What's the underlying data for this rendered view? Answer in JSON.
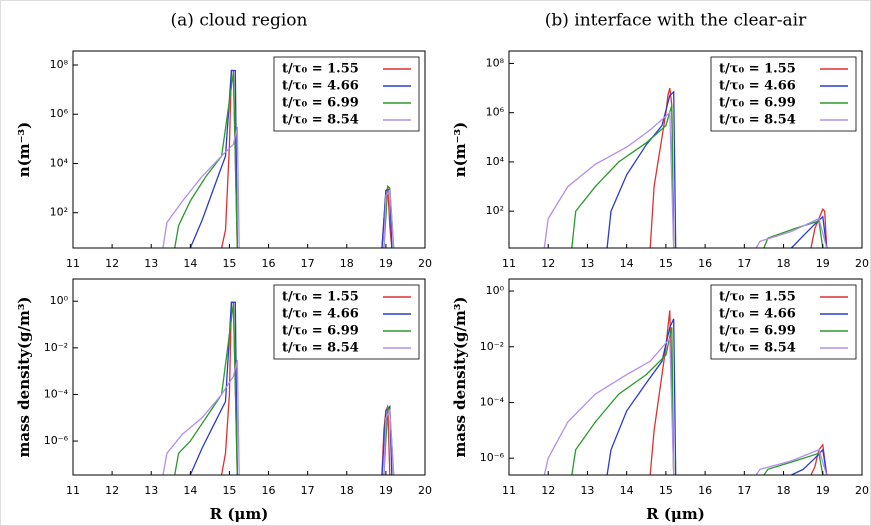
{
  "chart_data": [
    {
      "type": "line",
      "title": "(a) cloud region",
      "ylabel": "n(m⁻³)",
      "log_y": true,
      "legend": "upper right",
      "xlim": [
        11,
        20
      ],
      "xticks": [
        11,
        12,
        13,
        14,
        15,
        16,
        17,
        18,
        19,
        20
      ],
      "ylim": [
        3.7,
        370000000
      ],
      "yticks": [
        {
          "value": 100,
          "label": "10²"
        },
        {
          "value": 10000,
          "label": "10⁴"
        },
        {
          "value": 1000000,
          "label": "10⁶"
        },
        {
          "value": 100000000,
          "label": "10⁸"
        }
      ],
      "series": [
        {
          "name": "t/τ₀ = 1.55",
          "color": "#e03030",
          "x": [
            14.8,
            14.9,
            15.0,
            15.05,
            15.1,
            15.2,
            15.3,
            18.9,
            18.95,
            19.0,
            19.05,
            19.1,
            19.15
          ],
          "values": [
            3.7,
            20,
            50000,
            60000000,
            60000000,
            3.7,
            null,
            3.7,
            50,
            800,
            1000,
            30,
            3.7
          ]
        },
        {
          "name": "t/τ₀ = 4.66",
          "color": "#2a3bd0",
          "x": [
            14.0,
            14.3,
            14.6,
            14.9,
            15.05,
            15.15,
            15.2,
            15.3,
            18.9,
            19.0,
            19.1,
            19.15
          ],
          "values": [
            3.7,
            50,
            1000,
            20000,
            60000000,
            60000000,
            3.7,
            null,
            3.7,
            800,
            900,
            3.7
          ]
        },
        {
          "name": "t/τ₀ = 6.99",
          "color": "#2a9a2a",
          "x": [
            13.6,
            13.7,
            14.0,
            14.4,
            14.8,
            15.1,
            15.2,
            15.3,
            18.95,
            19.05,
            19.1,
            19.2
          ],
          "values": [
            3.7,
            30,
            300,
            3000,
            20000,
            50000000,
            3.7,
            null,
            3.7,
            1200,
            1000,
            3.7
          ]
        },
        {
          "name": "t/τ₀ = 8.54",
          "color": "#b28ef0",
          "x": [
            13.3,
            13.4,
            13.8,
            14.3,
            14.8,
            15.1,
            15.2,
            15.25,
            15.3,
            18.95,
            19.0,
            19.1,
            19.2
          ],
          "values": [
            3.7,
            40,
            300,
            3000,
            20000,
            60000,
            300000,
            3.7,
            null,
            3.7,
            500,
            800,
            3.7
          ]
        }
      ]
    },
    {
      "type": "line",
      "ylabel": "mass density(g/m³)",
      "xlabel": "R (μm)",
      "log_y": true,
      "legend": "upper right",
      "xlim": [
        11,
        20
      ],
      "xticks": [
        11,
        12,
        13,
        14,
        15,
        16,
        17,
        18,
        19,
        20
      ],
      "ylim": [
        3.5e-08,
        9
      ],
      "yticks": [
        {
          "value": 1e-06,
          "label": "10⁻⁶"
        },
        {
          "value": 0.0001,
          "label": "10⁻⁴"
        },
        {
          "value": 0.01,
          "label": "10⁻²"
        },
        {
          "value": 1,
          "label": "10⁰"
        }
      ],
      "series": [
        {
          "name": "t/τ₀ = 1.55",
          "color": "#e03030",
          "x": [
            14.8,
            14.9,
            15.0,
            15.05,
            15.1,
            15.2,
            15.3,
            18.9,
            18.95,
            19.0,
            19.05,
            19.1
          ],
          "values": [
            3.5e-08,
            3e-07,
            0.0001,
            0.9,
            0.9,
            3.5e-08,
            null,
            3.5e-08,
            3e-06,
            2e-05,
            3e-05,
            3.5e-08
          ]
        },
        {
          "name": "t/τ₀ = 4.66",
          "color": "#2a3bd0",
          "x": [
            14.0,
            14.3,
            14.6,
            14.9,
            15.05,
            15.15,
            15.2,
            15.3,
            18.9,
            19.0,
            19.1,
            19.15
          ],
          "values": [
            3.5e-08,
            5e-07,
            5e-06,
            5e-05,
            0.9,
            0.9,
            3.5e-08,
            null,
            3.5e-08,
            2e-05,
            3e-05,
            3.5e-08
          ]
        },
        {
          "name": "t/τ₀ = 6.99",
          "color": "#2a9a2a",
          "x": [
            13.6,
            13.7,
            14.0,
            14.4,
            14.8,
            15.1,
            15.2,
            15.3,
            18.95,
            19.05,
            19.1,
            19.2
          ],
          "values": [
            3.5e-08,
            3e-07,
            1e-06,
            1e-05,
            0.0001,
            0.8,
            3.5e-08,
            null,
            3.5e-08,
            3e-05,
            2e-05,
            3.5e-08
          ]
        },
        {
          "name": "t/τ₀ = 8.54",
          "color": "#b28ef0",
          "x": [
            13.3,
            13.4,
            13.8,
            14.3,
            14.8,
            15.1,
            15.2,
            15.25,
            15.3,
            18.95,
            19.0,
            19.1,
            19.2
          ],
          "values": [
            3.5e-08,
            3e-07,
            2e-06,
            1e-05,
            0.0001,
            0.0006,
            0.003,
            3.5e-08,
            null,
            3.5e-08,
            1e-05,
            2e-05,
            3.5e-08
          ]
        }
      ]
    },
    {
      "type": "line",
      "title": "(b) interface with the clear-air",
      "ylabel": "n(m⁻³)",
      "log_y": true,
      "legend": "upper right",
      "xlim": [
        11,
        20
      ],
      "xticks": [
        11,
        12,
        13,
        14,
        15,
        16,
        17,
        18,
        19,
        20
      ],
      "ylim": [
        3.2,
        320000000
      ],
      "yticks": [
        {
          "value": 100,
          "label": "10²"
        },
        {
          "value": 10000,
          "label": "10⁴"
        },
        {
          "value": 1000000,
          "label": "10⁶"
        },
        {
          "value": 100000000,
          "label": "10⁸"
        }
      ],
      "series": [
        {
          "name": "t/τ₀ = 1.55",
          "color": "#e03030",
          "x": [
            14.6,
            14.7,
            14.8,
            14.9,
            15.0,
            15.05,
            15.1,
            15.15,
            15.2,
            15.3,
            18.7,
            18.8,
            18.9,
            19.0,
            19.05,
            19.1
          ],
          "values": [
            3.2,
            1000,
            10000,
            100000,
            1000000,
            5000000,
            10000000,
            2000000,
            3.2,
            null,
            3.2,
            20,
            50,
            120,
            100,
            3.2
          ]
        },
        {
          "name": "t/τ₀ = 4.66",
          "color": "#2a3bd0",
          "x": [
            13.5,
            13.6,
            14.0,
            14.5,
            14.9,
            15.1,
            15.2,
            15.25,
            15.3,
            18.2,
            18.5,
            18.8,
            19.0,
            19.1
          ],
          "values": [
            3.2,
            100,
            3000,
            50000,
            300000,
            5000000,
            7000000,
            3.2,
            null,
            3.2,
            10,
            30,
            60,
            3.2
          ]
        },
        {
          "name": "t/τ₀ = 6.99",
          "color": "#2a9a2a",
          "x": [
            12.6,
            12.7,
            13.2,
            13.8,
            14.5,
            15.0,
            15.15,
            15.2,
            15.3,
            17.5,
            17.6,
            18.3,
            18.9,
            19.0
          ],
          "values": [
            3.2,
            100,
            1000,
            10000,
            60000,
            300000,
            2000000,
            3.2,
            null,
            3.2,
            8,
            20,
            40,
            3.2
          ]
        },
        {
          "name": "t/τ₀ = 8.54",
          "color": "#b28ef0",
          "x": [
            11.9,
            12.0,
            12.5,
            13.2,
            14.0,
            14.6,
            15.1,
            15.2,
            15.3,
            17.3,
            17.4,
            18.2,
            18.9,
            19.1
          ],
          "values": [
            3.2,
            50,
            1000,
            8000,
            40000,
            200000,
            1000000,
            3.2,
            null,
            3.2,
            6,
            15,
            50,
            3.2
          ]
        }
      ]
    },
    {
      "type": "line",
      "ylabel": "mass density(g/m³)",
      "xlabel": "R (μm)",
      "log_y": true,
      "legend": "upper right",
      "xlim": [
        11,
        20
      ],
      "xticks": [
        11,
        12,
        13,
        14,
        15,
        16,
        17,
        18,
        19,
        20
      ],
      "ylim": [
        2.5e-07,
        2.7
      ],
      "yticks": [
        {
          "value": 1e-06,
          "label": "10⁻⁶"
        },
        {
          "value": 0.0001,
          "label": "10⁻⁴"
        },
        {
          "value": 0.01,
          "label": "10⁻²"
        },
        {
          "value": 1,
          "label": "10⁰"
        }
      ],
      "series": [
        {
          "name": "t/τ₀ = 1.55",
          "color": "#e03030",
          "x": [
            14.6,
            14.7,
            14.9,
            15.0,
            15.05,
            15.1,
            15.2,
            15.3,
            18.7,
            18.8,
            18.9,
            19.0,
            19.1
          ],
          "values": [
            2.5e-07,
            1e-05,
            0.001,
            0.01,
            0.05,
            0.2,
            2.5e-07,
            null,
            2.5e-07,
            5e-07,
            2e-06,
            3e-06,
            2.5e-07
          ]
        },
        {
          "name": "t/τ₀ = 4.66",
          "color": "#2a3bd0",
          "x": [
            13.5,
            13.6,
            14.0,
            14.5,
            14.9,
            15.1,
            15.2,
            15.25,
            15.3,
            18.2,
            18.5,
            18.8,
            19.0,
            19.1
          ],
          "values": [
            2.5e-07,
            2e-06,
            5e-05,
            0.0005,
            0.003,
            0.05,
            0.1,
            2.5e-07,
            null,
            2.5e-07,
            4e-07,
            1e-06,
            2e-06,
            2.5e-07
          ]
        },
        {
          "name": "t/τ₀ = 6.99",
          "color": "#2a9a2a",
          "x": [
            12.6,
            12.7,
            13.2,
            13.8,
            14.5,
            15.0,
            15.15,
            15.2,
            15.3,
            17.5,
            17.6,
            18.3,
            18.9,
            19.0
          ],
          "values": [
            2.5e-07,
            2e-06,
            2e-05,
            0.0002,
            0.001,
            0.005,
            0.05,
            2.5e-07,
            null,
            2.5e-07,
            4e-07,
            8e-07,
            1.5e-06,
            2.5e-07
          ]
        },
        {
          "name": "t/τ₀ = 8.54",
          "color": "#b28ef0",
          "x": [
            11.9,
            12.0,
            12.5,
            13.2,
            14.0,
            14.6,
            15.1,
            15.2,
            15.3,
            17.3,
            17.4,
            18.2,
            18.9,
            19.1
          ],
          "values": [
            2.5e-07,
            1e-06,
            2e-05,
            0.0002,
            0.001,
            0.003,
            0.02,
            2.5e-07,
            null,
            2.5e-07,
            4e-07,
            8e-07,
            2e-06,
            2.5e-07
          ]
        }
      ]
    }
  ]
}
